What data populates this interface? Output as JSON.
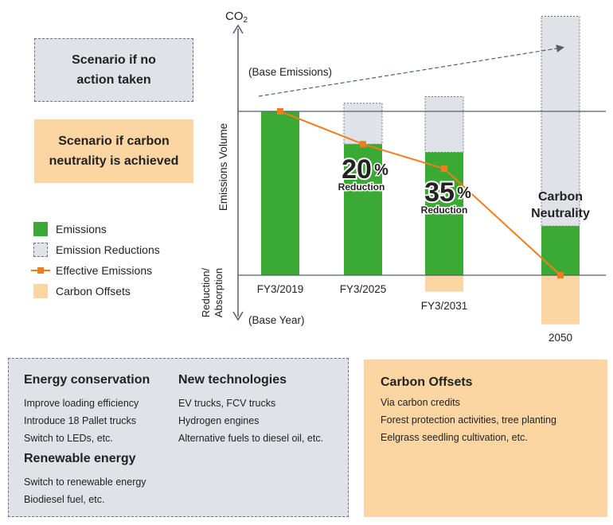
{
  "scenarios": {
    "no_action": "Scenario if no action taken",
    "no_action_lines": [
      "Scenario if no",
      "action taken"
    ],
    "carbon_neutral": "Scenario if carbon neutrality is achieved",
    "carbon_neutral_lines": [
      "Scenario if carbon",
      "neutrality is achieved"
    ]
  },
  "legend": {
    "emissions": "Emissions",
    "emission_reductions": "Emission Reductions",
    "effective_emissions": "Effective Emissions",
    "carbon_offsets": "Carbon Offsets"
  },
  "colors": {
    "emissions": "#3aaa35",
    "reductions": "#dfe3e8",
    "effective": "#f07d1e",
    "offsets": "#fbd6a3",
    "axis": "#555e6a"
  },
  "chart_data": {
    "type": "bar",
    "categories": [
      "FY3/2019",
      "FY3/2025",
      "FY3/2031",
      "2050"
    ],
    "series": [
      {
        "name": "Emissions",
        "values": [
          100,
          80,
          75,
          30
        ]
      },
      {
        "name": "Emission Reductions",
        "values": [
          0,
          25,
          34,
          128
        ]
      },
      {
        "name": "Carbon Offsets",
        "values": [
          0,
          0,
          -10,
          -30
        ]
      },
      {
        "name": "Effective Emissions",
        "type": "line",
        "values": [
          100,
          80,
          65,
          0
        ]
      }
    ],
    "ylim": [
      -30,
      150
    ],
    "baseline_value": 100,
    "y_axis_top_label": "CO",
    "y_axis_top_subscript": "2",
    "y_axis_upper_label": "Emissions Volume",
    "y_axis_lower_label_lines": [
      "Reduction/",
      "Absorption"
    ],
    "annotations": {
      "base_emissions": "(Base Emissions)",
      "base_year": "(Base Year)",
      "reduction_2025_number": "20",
      "reduction_2031_number": "35",
      "percent": "%",
      "reduction_word": "Reduction",
      "carbon_neutrality_lines": [
        "Carbon",
        "Neutrality"
      ]
    }
  },
  "box_left": {
    "energy_conservation": {
      "heading": "Energy conservation",
      "items": [
        "Improve loading efficiency",
        "Introduce 18 Pallet trucks",
        "Switch to LEDs, etc."
      ]
    },
    "new_technologies": {
      "heading": "New technologies",
      "items": [
        "EV trucks, FCV trucks",
        "Hydrogen engines",
        "Alternative fuels to diesel oil, etc."
      ]
    },
    "renewable_energy": {
      "heading": "Renewable energy",
      "items": [
        "Switch to renewable energy",
        "Biodiesel fuel, etc."
      ]
    }
  },
  "box_right": {
    "heading": "Carbon Offsets",
    "items": [
      "Via carbon credits",
      "Forest protection activities, tree planting",
      "Eelgrass seedling cultivation, etc."
    ]
  }
}
